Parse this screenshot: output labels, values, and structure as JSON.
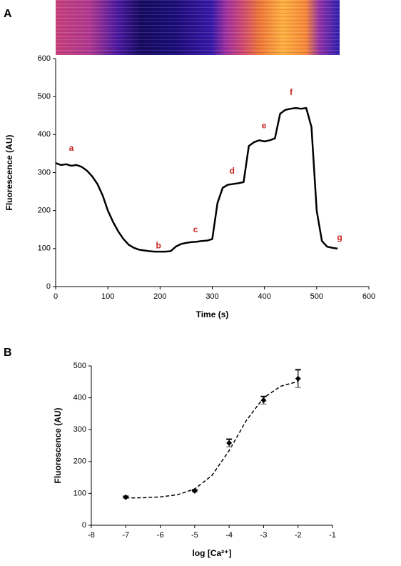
{
  "chart_data": [
    {
      "type": "line",
      "label": "A",
      "xlabel": "Time (s)",
      "ylabel": "Fluorescence (AU)",
      "x": [
        0,
        10,
        20,
        30,
        40,
        50,
        60,
        70,
        80,
        90,
        100,
        110,
        120,
        130,
        140,
        150,
        160,
        170,
        180,
        190,
        200,
        210,
        220,
        230,
        240,
        250,
        260,
        270,
        280,
        290,
        300,
        310,
        320,
        330,
        340,
        350,
        360,
        370,
        380,
        390,
        400,
        410,
        420,
        430,
        440,
        450,
        460,
        470,
        480,
        490,
        500,
        510,
        520,
        530,
        540
      ],
      "values": [
        325,
        320,
        322,
        318,
        320,
        315,
        305,
        290,
        270,
        240,
        200,
        170,
        145,
        125,
        110,
        102,
        97,
        95,
        93,
        92,
        92,
        92,
        93,
        105,
        112,
        115,
        117,
        118,
        120,
        121,
        125,
        220,
        260,
        268,
        270,
        272,
        275,
        370,
        380,
        385,
        382,
        385,
        390,
        455,
        465,
        468,
        470,
        468,
        470,
        420,
        200,
        120,
        105,
        102,
        100
      ],
      "color": "#000000",
      "xlim": [
        0,
        600
      ],
      "xticks": [
        0,
        100,
        200,
        300,
        400,
        500,
        600
      ],
      "ylim": [
        0,
        600
      ],
      "yticks": [
        0,
        100,
        200,
        300,
        400,
        500,
        600
      ],
      "annotations": [
        {
          "text": "a",
          "x": 30,
          "y": 363
        },
        {
          "text": "b",
          "x": 197,
          "y": 107
        },
        {
          "text": "c",
          "x": 268,
          "y": 149
        },
        {
          "text": "d",
          "x": 338,
          "y": 303
        },
        {
          "text": "e",
          "x": 399,
          "y": 423
        },
        {
          "text": "f",
          "x": 451,
          "y": 510
        },
        {
          "text": "g",
          "x": 544,
          "y": 128
        }
      ],
      "annotation_color": "#cc2222"
    },
    {
      "type": "scatter",
      "label": "B",
      "xlabel": "log [Ca²⁺]",
      "ylabel": "Fluorescence (AU)",
      "x": [
        -7,
        -5,
        -4,
        -3,
        -2
      ],
      "values": [
        88,
        108,
        258,
        392,
        460
      ],
      "errors": [
        3,
        3,
        12,
        12,
        28
      ],
      "fit_x": [
        -7,
        -6.5,
        -6,
        -5.5,
        -5,
        -4.5,
        -4,
        -3.5,
        -3,
        -2.5,
        -2
      ],
      "fit_values": [
        85.5,
        86.4,
        88.9,
        95.7,
        113.8,
        156.2,
        234.2,
        329.0,
        400.0,
        436.3,
        451.2
      ],
      "color": "#000000",
      "xlim": [
        -8,
        -1
      ],
      "xticks": [
        -8,
        -7,
        -6,
        -5,
        -4,
        -3,
        -2,
        -1
      ],
      "ylim": [
        0,
        500
      ],
      "yticks": [
        0,
        100,
        200,
        300,
        400,
        500
      ]
    }
  ]
}
